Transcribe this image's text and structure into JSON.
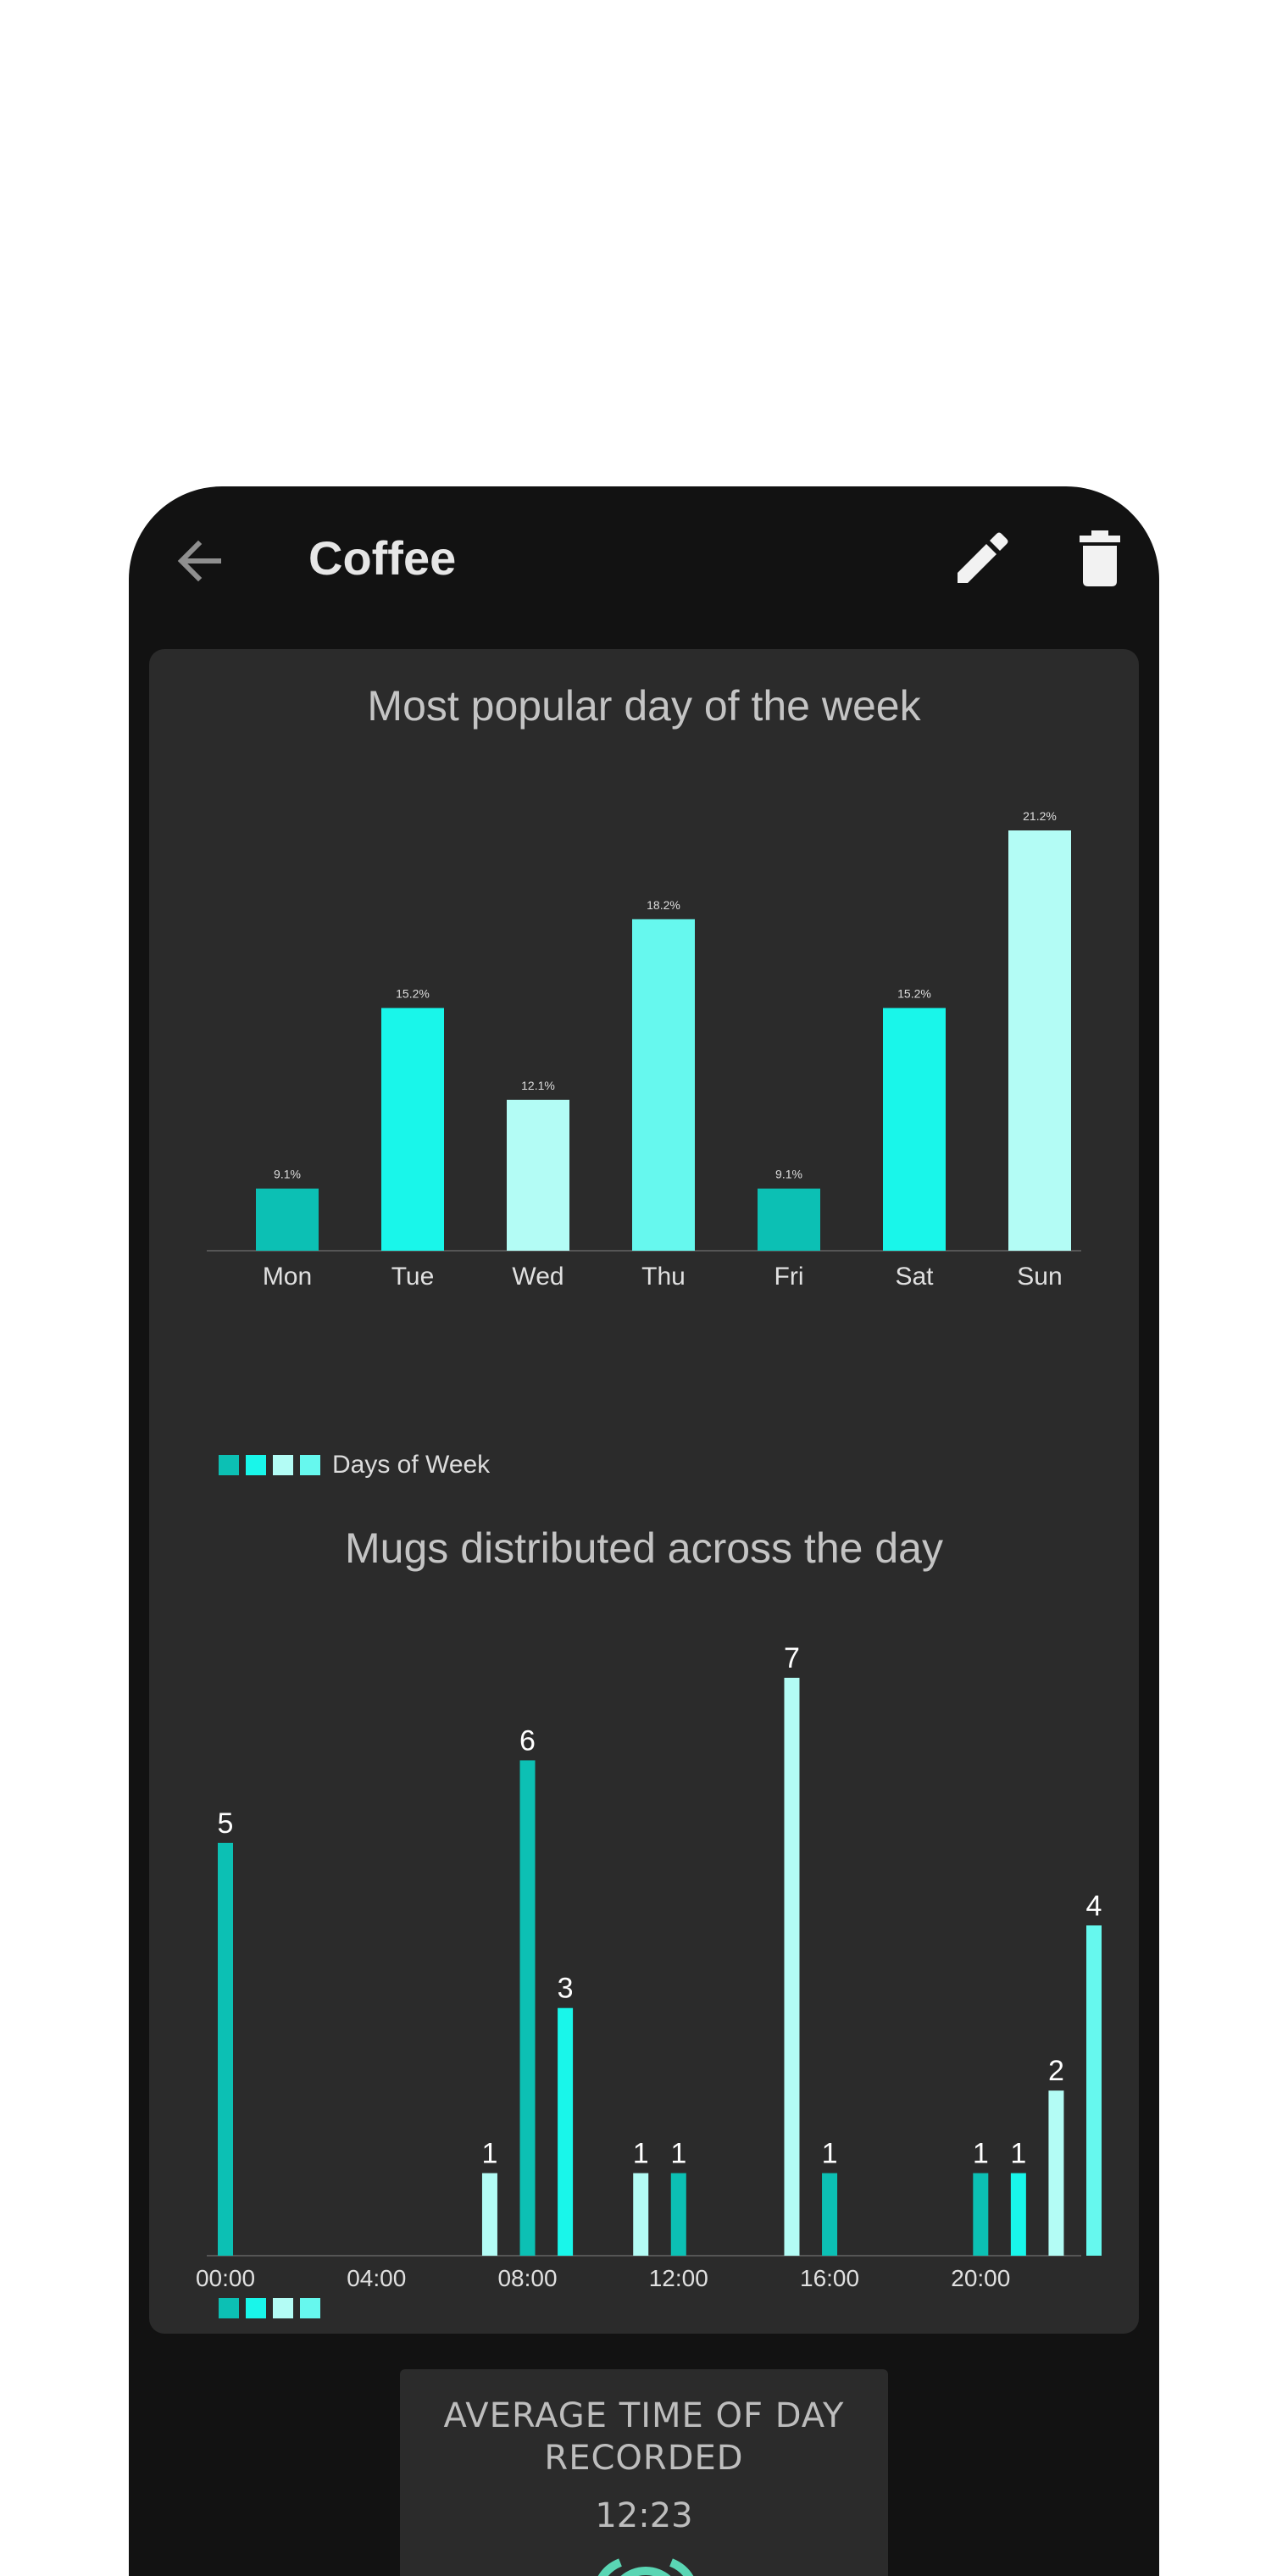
{
  "appbar": {
    "title": "Coffee",
    "back_icon": "arrow-left-icon",
    "edit_icon": "pencil-icon",
    "delete_icon": "trash-icon"
  },
  "colors": {
    "phone_bg": "#121212",
    "card_bg": "#2b2b2b",
    "teal": "#0cc0b4",
    "cyan": "#19f6ea",
    "light_cyan": "#b3fcf5",
    "mint": "#66f8ee"
  },
  "chart_data": [
    {
      "type": "bar",
      "title": "Most popular day of the week",
      "categories": [
        "Mon",
        "Tue",
        "Wed",
        "Thu",
        "Fri",
        "Sat",
        "Sun"
      ],
      "values": [
        9.1,
        15.2,
        12.1,
        18.2,
        9.1,
        15.2,
        21.2
      ],
      "value_labels": [
        "9.1%",
        "15.2%",
        "12.1%",
        "18.2%",
        "9.1%",
        "15.2%",
        "21.2%"
      ],
      "bar_colors": [
        "#0cc0b4",
        "#19f6ea",
        "#b3fcf5",
        "#66f8ee",
        "#0cc0b4",
        "#19f6ea",
        "#b3fcf5"
      ],
      "legend": "Days of Week",
      "legend_colors": [
        "#0cc0b4",
        "#19f6ea",
        "#b3fcf5",
        "#66f8ee"
      ],
      "ylim": [
        7,
        21.2
      ]
    },
    {
      "type": "bar",
      "title": "Mugs distributed across the day",
      "x": [
        0,
        7,
        8,
        9,
        11,
        12,
        15,
        16,
        20,
        21,
        22,
        23
      ],
      "values": [
        5,
        1,
        6,
        3,
        1,
        1,
        7,
        1,
        1,
        1,
        2,
        4
      ],
      "value_labels": [
        "5",
        "1",
        "6",
        "3",
        "1",
        "1",
        "7",
        "1",
        "1",
        "1",
        "2",
        "4"
      ],
      "bar_colors": [
        "#0cc0b4",
        "#b3fcf5",
        "#0cc0b4",
        "#19f6ea",
        "#b3fcf5",
        "#0cc0b4",
        "#b3fcf5",
        "#0cc0b4",
        "#0cc0b4",
        "#19f6ea",
        "#b3fcf5",
        "#66f8ee"
      ],
      "tick_labels": [
        "00:00",
        "04:00",
        "08:00",
        "12:00",
        "16:00",
        "20:00"
      ],
      "tick_hours": [
        0,
        4,
        8,
        12,
        16,
        20
      ],
      "legend_colors": [
        "#0cc0b4",
        "#19f6ea",
        "#b3fcf5",
        "#66f8ee"
      ],
      "xlim": [
        0,
        23
      ],
      "ylim": [
        0,
        7
      ]
    }
  ],
  "average_card": {
    "title": "AVERAGE TIME OF DAY RECORDED",
    "value": "12:23",
    "icon": "alarm-clock-icon"
  }
}
